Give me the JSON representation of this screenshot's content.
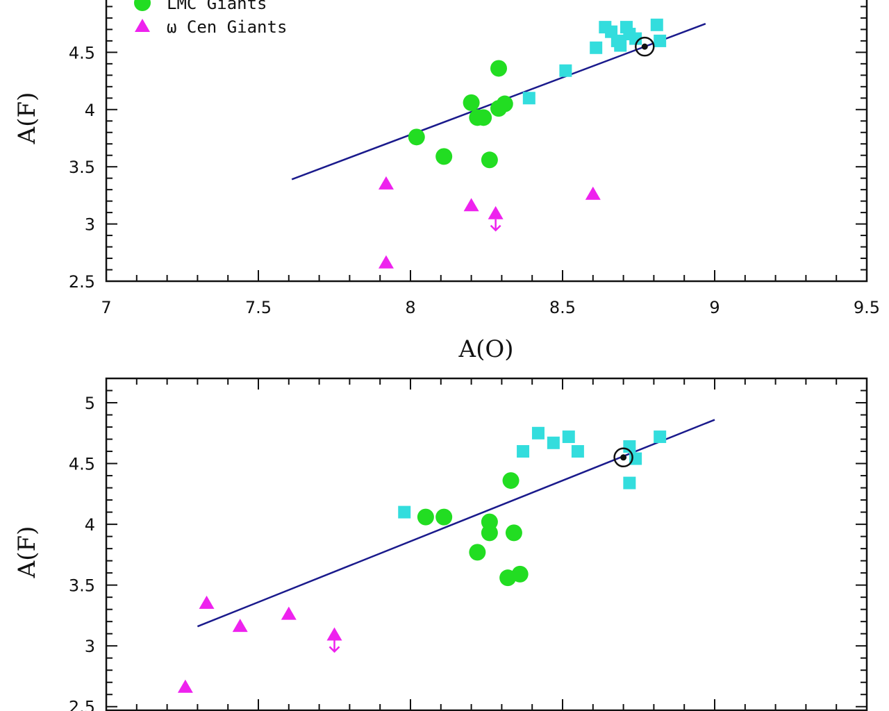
{
  "chart_data": [
    {
      "type": "scatter",
      "panel": "top",
      "xlabel": "A(O)",
      "ylabel": "A(F)",
      "xlim": [
        7,
        9.5
      ],
      "ylim": [
        2.5,
        5.2
      ],
      "xticks": [
        "7",
        "7.5",
        "8",
        "8.5",
        "9",
        "9.5"
      ],
      "yticks": [
        "2.5",
        "3",
        "3.5",
        "4",
        "4.5"
      ],
      "legend": {
        "placement": "top-left",
        "entries": [
          "LMC Giants",
          "ω Cen Giants"
        ]
      },
      "series": [
        {
          "name": "LMC Giants",
          "marker": "circle",
          "color": "#22dd22",
          "points": [
            [
              8.02,
              3.76
            ],
            [
              8.11,
              3.59
            ],
            [
              8.2,
              4.06
            ],
            [
              8.22,
              3.93
            ],
            [
              8.24,
              3.93
            ],
            [
              8.26,
              3.56
            ],
            [
              8.29,
              4.36
            ],
            [
              8.29,
              4.01
            ],
            [
              8.31,
              4.05
            ]
          ]
        },
        {
          "name": "ω Cen Giants",
          "marker": "triangle",
          "color": "#ee22ee",
          "points": [
            [
              7.92,
              3.35
            ],
            [
              7.92,
              2.66
            ],
            [
              8.2,
              3.16
            ],
            [
              8.28,
              3.09
            ],
            [
              8.6,
              3.26
            ]
          ],
          "upper_limits": [
            [
              8.28,
              3.09
            ]
          ]
        },
        {
          "marker": "square",
          "color": "#33dddd",
          "points": [
            [
              8.39,
              4.1
            ],
            [
              8.51,
              4.34
            ],
            [
              8.61,
              4.54
            ],
            [
              8.64,
              4.72
            ],
            [
              8.66,
              4.68
            ],
            [
              8.68,
              4.6
            ],
            [
              8.69,
              4.56
            ],
            [
              8.71,
              4.72
            ],
            [
              8.72,
              4.66
            ],
            [
              8.74,
              4.62
            ],
            [
              8.81,
              4.74
            ],
            [
              8.82,
              4.6
            ]
          ]
        }
      ],
      "sun": [
        8.77,
        4.55
      ],
      "fit_line": [
        [
          7.61,
          3.39
        ],
        [
          8.97,
          4.75
        ]
      ]
    },
    {
      "type": "scatter",
      "panel": "bottom",
      "ylabel": "A(F)",
      "xlim": [
        7,
        9.5
      ],
      "ylim": [
        2.47,
        5.2
      ],
      "yticks": [
        "2.5",
        "3",
        "3.5",
        "4",
        "4.5",
        "5"
      ],
      "series": [
        {
          "name": "LMC Giants",
          "marker": "circle",
          "color": "#22dd22",
          "points": [
            [
              8.05,
              4.06
            ],
            [
              8.11,
              4.06
            ],
            [
              8.22,
              3.77
            ],
            [
              8.26,
              4.02
            ],
            [
              8.26,
              3.93
            ],
            [
              8.32,
              3.56
            ],
            [
              8.33,
              4.36
            ],
            [
              8.34,
              3.93
            ],
            [
              8.36,
              3.59
            ]
          ]
        },
        {
          "name": "ω Cen Giants",
          "marker": "triangle",
          "color": "#ee22ee",
          "points": [
            [
              7.26,
              2.66
            ],
            [
              7.33,
              3.35
            ],
            [
              7.44,
              3.16
            ],
            [
              7.6,
              3.26
            ],
            [
              7.75,
              3.09
            ]
          ],
          "upper_limits": [
            [
              7.75,
              3.09
            ]
          ]
        },
        {
          "marker": "square",
          "color": "#33dddd",
          "points": [
            [
              7.98,
              4.1
            ],
            [
              8.37,
              4.6
            ],
            [
              8.42,
              4.75
            ],
            [
              8.47,
              4.67
            ],
            [
              8.52,
              4.72
            ],
            [
              8.55,
              4.6
            ],
            [
              8.72,
              4.64
            ],
            [
              8.72,
              4.34
            ],
            [
              8.74,
              4.54
            ],
            [
              8.82,
              4.72
            ]
          ]
        }
      ],
      "sun": [
        8.7,
        4.55
      ],
      "fit_line": [
        [
          7.3,
          3.16
        ],
        [
          9.0,
          4.86
        ]
      ]
    }
  ]
}
